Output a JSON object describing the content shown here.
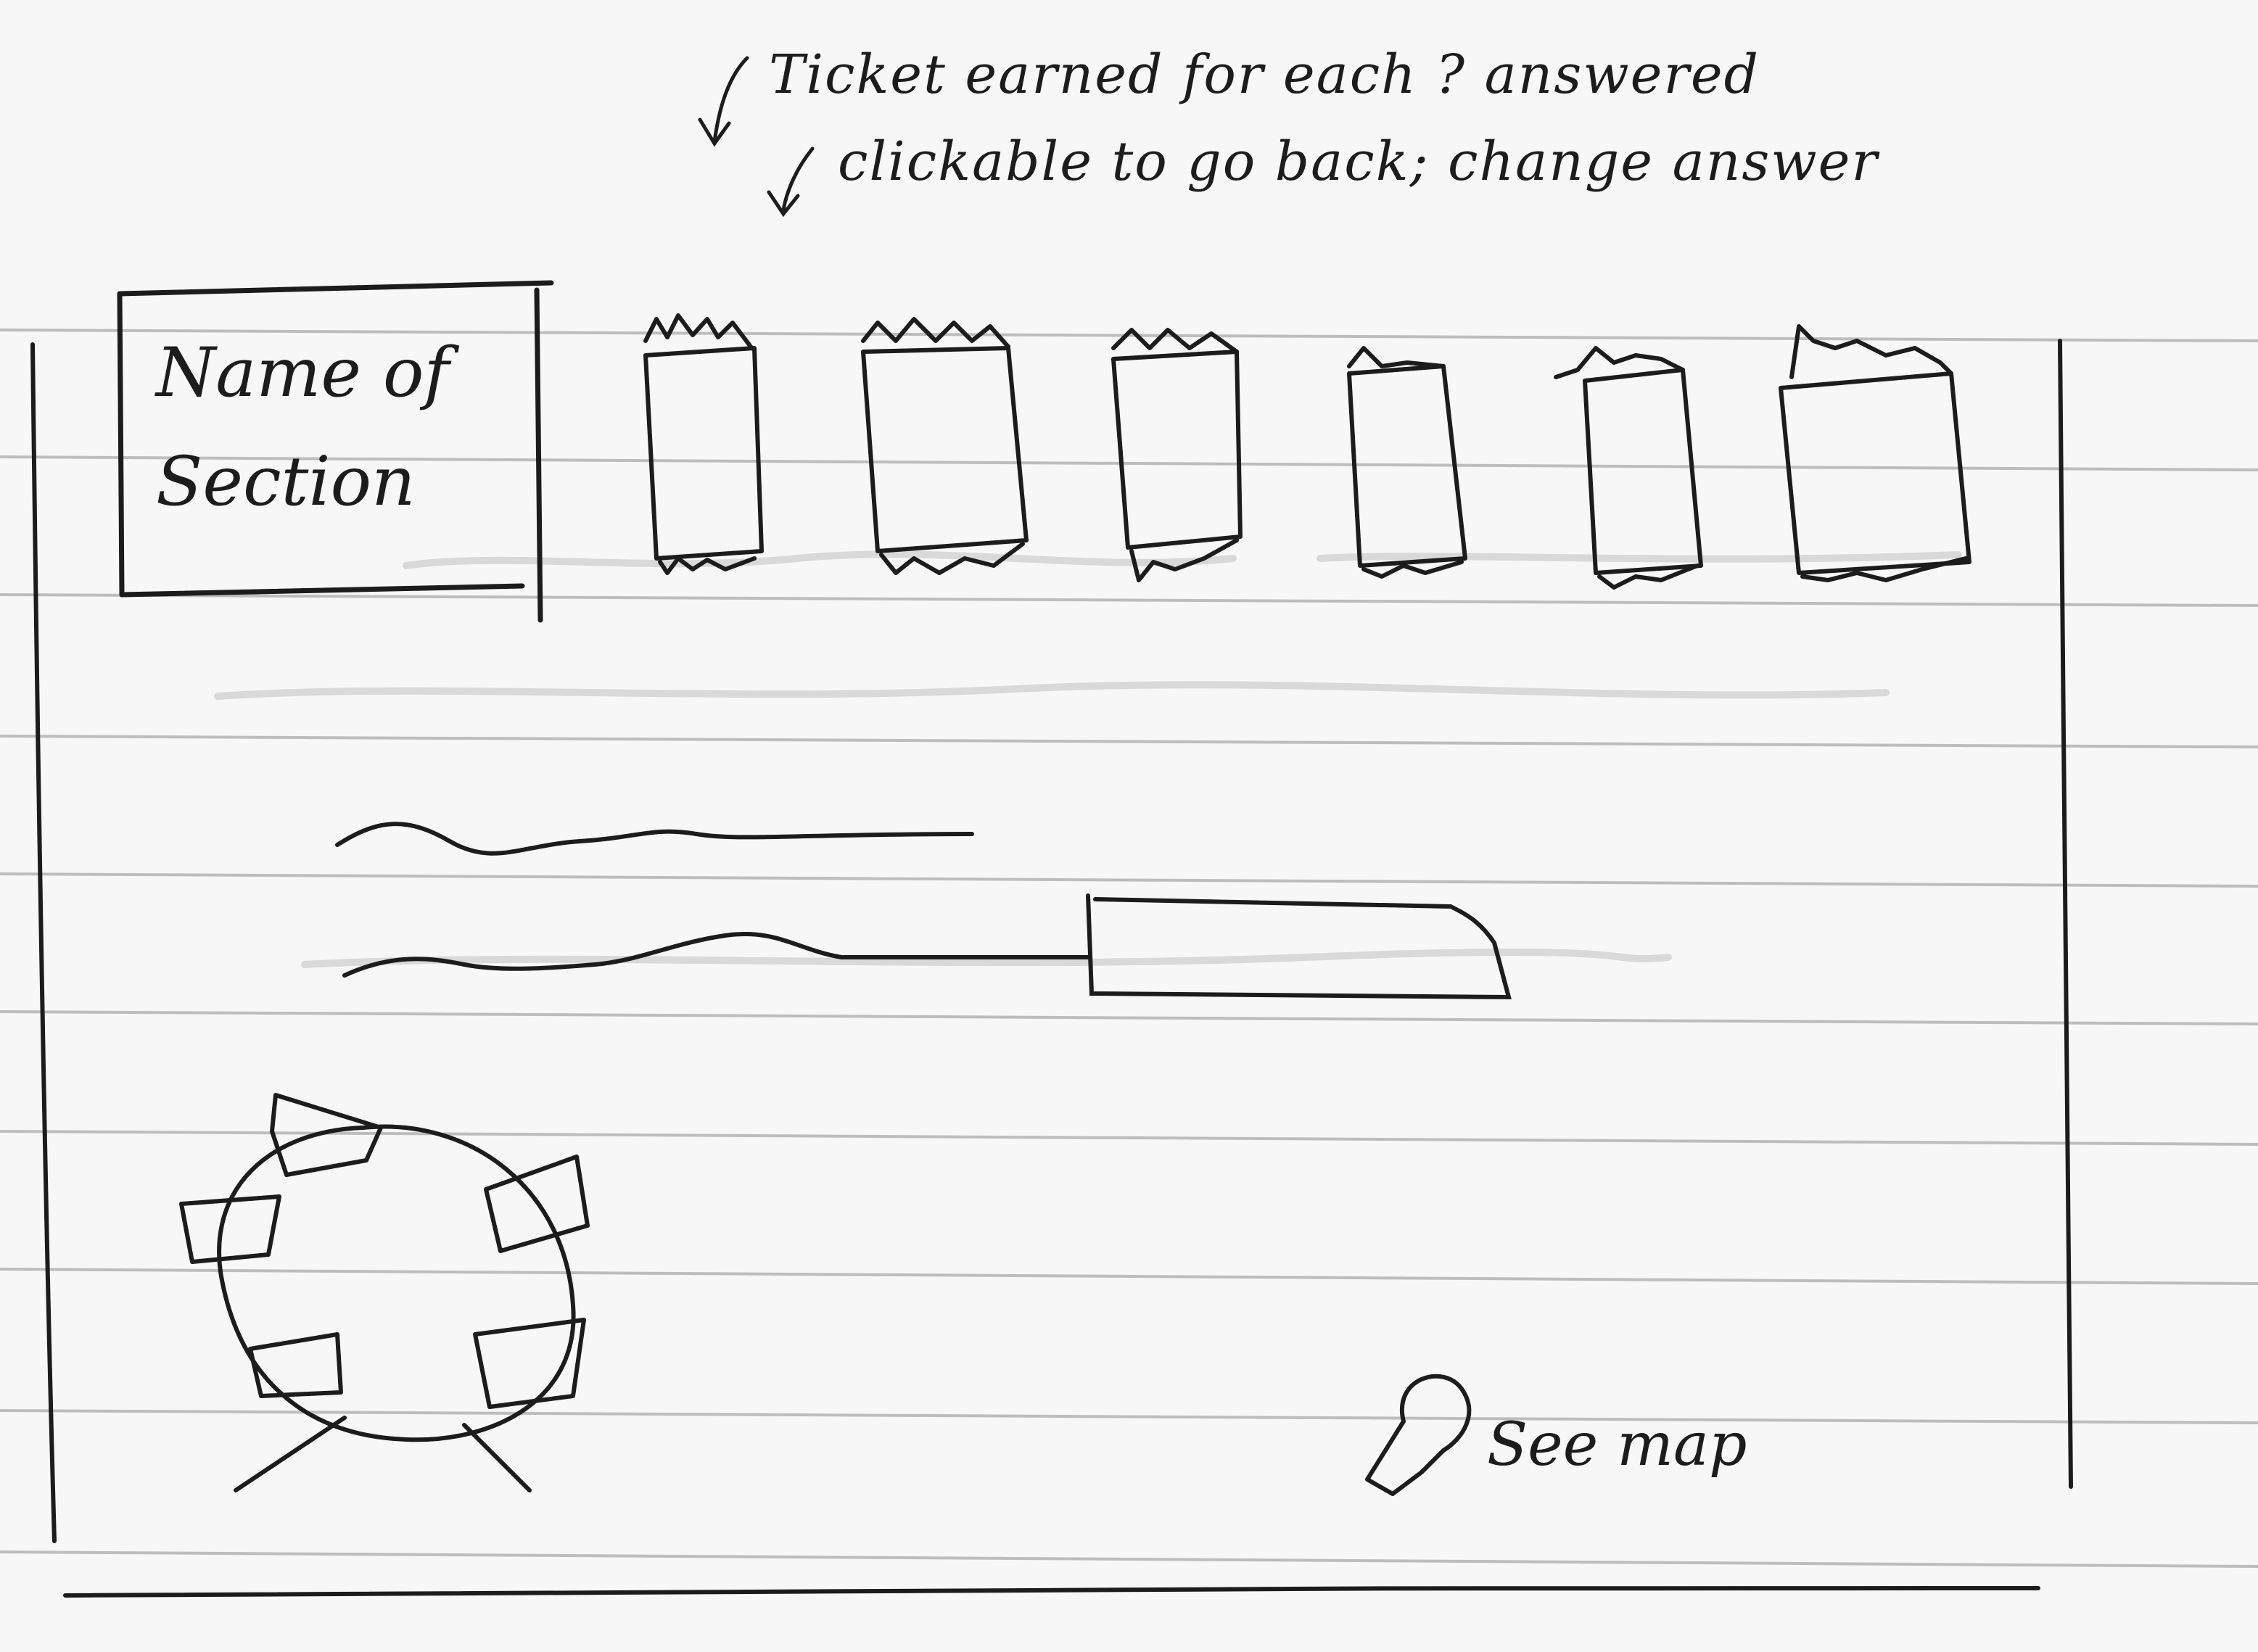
{
  "annotations": [
    {
      "text": "Ticket earned for each ? answered"
    },
    {
      "text": "clickable to go back; change answer"
    }
  ],
  "header": {
    "section_title_line1": "Name of",
    "section_title_line2": "Section",
    "tickets": [
      {
        "state": "earned"
      },
      {
        "state": "earned"
      },
      {
        "state": "earned"
      },
      {
        "state": "earned"
      },
      {
        "state": "earned"
      },
      {
        "state": "earned"
      }
    ]
  },
  "map_link": {
    "label": "See map",
    "icon": "map-pin-icon"
  },
  "colors": {
    "paper": "#f7f7f7",
    "rule": "#b9b9b9",
    "ink": "#1c1c1c"
  }
}
